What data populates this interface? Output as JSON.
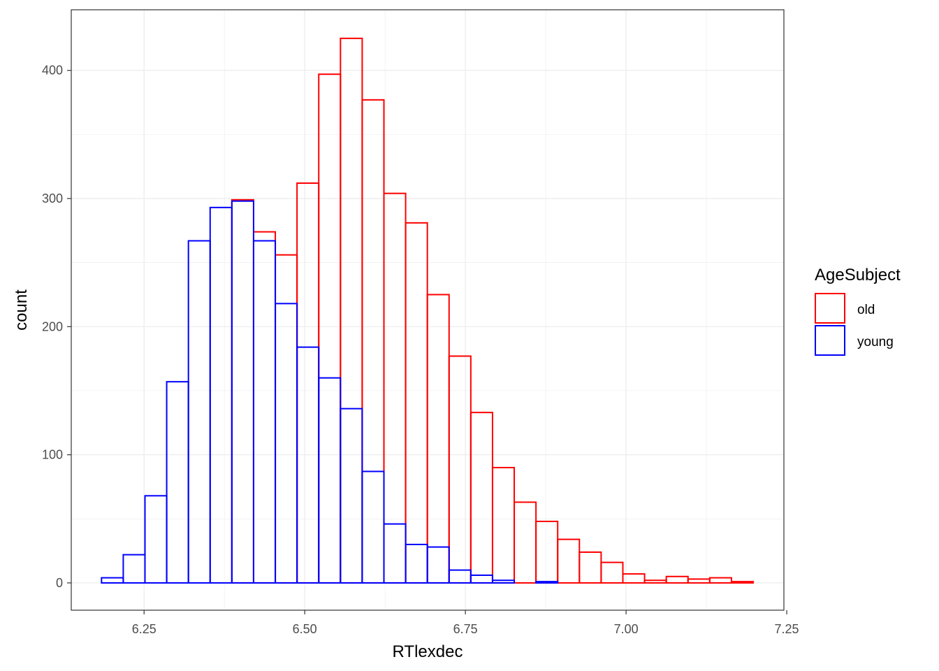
{
  "chart_data": {
    "type": "histogram",
    "xlabel": "RTlexdec",
    "ylabel": "count",
    "xlim": [
      6.1367,
      7.2456
    ],
    "ylim": [
      -21.3,
      447.3
    ],
    "x_ticks": [
      6.25,
      6.5,
      6.75,
      7.0,
      7.25
    ],
    "x_tick_labels": [
      "6.25",
      "6.50",
      "6.75",
      "7.00",
      "7.25"
    ],
    "y_ticks": [
      0,
      100,
      200,
      300,
      400
    ],
    "y_tick_labels": [
      "0",
      "100",
      "200",
      "300",
      "400"
    ],
    "grid": true,
    "position": "identity",
    "bin_edges": [
      6.1838,
      6.2176,
      6.2514,
      6.2852,
      6.319,
      6.3528,
      6.3866,
      6.4204,
      6.4542,
      6.488,
      6.5218,
      6.5556,
      6.5894,
      6.6232,
      6.657,
      6.6908,
      6.7246,
      6.7584,
      6.7922,
      6.826,
      6.8598,
      6.8936,
      6.9274,
      6.9612,
      6.995,
      7.0288,
      7.0626,
      7.0964,
      7.1302,
      7.164,
      7.1978
    ],
    "legend": {
      "title": "AgeSubject",
      "position": "right"
    },
    "series": [
      {
        "name": "old",
        "color": "#ff0000",
        "values": [
          0,
          0,
          0,
          0,
          0,
          0,
          299,
          274,
          256,
          312,
          397,
          425,
          377,
          304,
          281,
          225,
          177,
          133,
          90,
          63,
          48,
          34,
          24,
          16,
          7,
          2,
          5,
          3,
          4,
          1
        ]
      },
      {
        "name": "young",
        "color": "#0000ff",
        "values": [
          4,
          22,
          68,
          157,
          267,
          293,
          298,
          267,
          218,
          184,
          160,
          136,
          87,
          46,
          30,
          28,
          10,
          6,
          2,
          0,
          1,
          0,
          0,
          0,
          0,
          0,
          0,
          0,
          0,
          0
        ]
      }
    ]
  }
}
